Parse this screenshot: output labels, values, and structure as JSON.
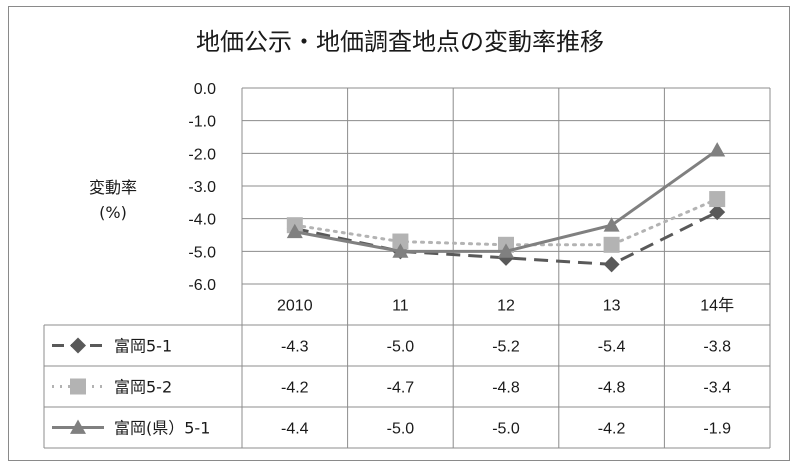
{
  "chart_data": {
    "type": "line",
    "title": "地価公示・地価調査地点の変動率推移",
    "ylabel": "変動率",
    "ylabel_unit": "(%)",
    "xlabel": "",
    "categories": [
      "2010",
      "11",
      "12",
      "13",
      "14年"
    ],
    "y_ticks": [
      "0.0",
      "-1.0",
      "-2.0",
      "-3.0",
      "-4.0",
      "-5.0",
      "-6.0"
    ],
    "ylim": [
      -6,
      0
    ],
    "grid": true,
    "legend": "data-table",
    "series": [
      {
        "name": "富岡5-1",
        "values": [
          -4.3,
          -5.0,
          -5.2,
          -5.4,
          -3.8
        ],
        "labels": [
          "-4.3",
          "-5.0",
          "-5.2",
          "-5.4",
          "-3.8"
        ],
        "color": "#595959",
        "style": "dashed",
        "marker": "diamond"
      },
      {
        "name": "富岡5-2",
        "values": [
          -4.2,
          -4.7,
          -4.8,
          -4.8,
          -3.4
        ],
        "labels": [
          "-4.2",
          "-4.7",
          "-4.8",
          "-4.8",
          "-3.4"
        ],
        "color": "#b3b3b3",
        "style": "dotted",
        "marker": "square"
      },
      {
        "name": "富岡(県）5-1",
        "values": [
          -4.4,
          -5.0,
          -5.0,
          -4.2,
          -1.9
        ],
        "labels": [
          "-4.4",
          "-5.0",
          "-5.0",
          "-4.2",
          "-1.9"
        ],
        "color": "#808080",
        "style": "solid",
        "marker": "triangle"
      }
    ]
  }
}
